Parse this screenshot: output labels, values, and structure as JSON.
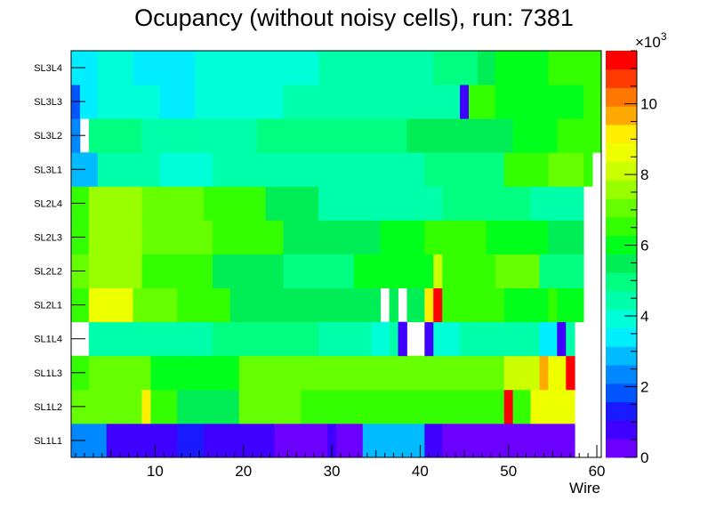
{
  "chart_data": {
    "type": "heatmap",
    "title": "Ocupancy (without noisy cells), run: 7381",
    "xlabel": "Wire",
    "ylabel": "",
    "xlim": [
      0.5,
      60.5
    ],
    "x_ticks": [
      10,
      20,
      30,
      40,
      50,
      60
    ],
    "layers": [
      "SL1L1",
      "SL1L2",
      "SL1L3",
      "SL1L4",
      "SL2L1",
      "SL2L2",
      "SL2L3",
      "SL2L4",
      "SL3L1",
      "SL3L2",
      "SL3L3",
      "SL3L4"
    ],
    "zlim": [
      0,
      11500
    ],
    "z_exponent_label": "×10",
    "z_exponent_power": "3",
    "z_ticks": [
      {
        "value": 0,
        "label": "0"
      },
      {
        "value": 2000,
        "label": "2"
      },
      {
        "value": 4000,
        "label": "4"
      },
      {
        "value": 6000,
        "label": "6"
      },
      {
        "value": 8000,
        "label": "8"
      },
      {
        "value": 10000,
        "label": "10"
      }
    ],
    "palette": [
      "#6b00ff",
      "#3f00ff",
      "#1a1aff",
      "#0055ff",
      "#0088ff",
      "#00bbff",
      "#00eeff",
      "#00ffd8",
      "#00ffaa",
      "#00ff80",
      "#00ee55",
      "#00ff1a",
      "#33ff00",
      "#66ff00",
      "#99ff00",
      "#ccff00",
      "#eeff00",
      "#ffee00",
      "#ffaa00",
      "#ff7700",
      "#ff3a00",
      "#ff0000"
    ],
    "rows": [
      {
        "layer": "SL1L1",
        "segments": [
          [
            1,
            4,
            2200
          ],
          [
            5,
            12,
            600
          ],
          [
            13,
            15,
            1100
          ],
          [
            16,
            23,
            700
          ],
          [
            24,
            29,
            400
          ],
          [
            30,
            30,
            700
          ],
          [
            31,
            33,
            400
          ],
          [
            34,
            40,
            3000
          ],
          [
            41,
            42,
            600
          ],
          [
            43,
            57,
            500
          ],
          [
            58,
            60,
            null
          ]
        ]
      },
      {
        "layer": "SL1L2",
        "segments": [
          [
            1,
            8,
            6900
          ],
          [
            9,
            9,
            9000
          ],
          [
            10,
            12,
            6300
          ],
          [
            13,
            19,
            5600
          ],
          [
            20,
            26,
            6900
          ],
          [
            27,
            49,
            6700
          ],
          [
            50,
            50,
            11200
          ],
          [
            51,
            52,
            6700
          ],
          [
            53,
            57,
            8800
          ],
          [
            58,
            60,
            null
          ]
        ]
      },
      {
        "layer": "SL1L3",
        "segments": [
          [
            1,
            2,
            6600
          ],
          [
            3,
            9,
            7100
          ],
          [
            10,
            19,
            5800
          ],
          [
            20,
            44,
            7000
          ],
          [
            45,
            49,
            7300
          ],
          [
            50,
            53,
            8200
          ],
          [
            54,
            54,
            9700
          ],
          [
            55,
            56,
            8600
          ],
          [
            57,
            57,
            11000
          ],
          [
            58,
            60,
            null
          ]
        ]
      },
      {
        "layer": "SL1L4",
        "segments": [
          [
            1,
            2,
            null
          ],
          [
            3,
            13,
            4600
          ],
          [
            14,
            16,
            4200
          ],
          [
            17,
            28,
            4800
          ],
          [
            29,
            34,
            4600
          ],
          [
            35,
            36,
            3800
          ],
          [
            37,
            37,
            4600
          ],
          [
            38,
            38,
            800
          ],
          [
            39,
            40,
            null
          ],
          [
            41,
            41,
            800
          ],
          [
            42,
            44,
            3800
          ],
          [
            45,
            53,
            4700
          ],
          [
            54,
            55,
            3500
          ],
          [
            56,
            56,
            700
          ],
          [
            57,
            57,
            4700
          ],
          [
            58,
            60,
            null
          ]
        ]
      },
      {
        "layer": "SL2L1",
        "segments": [
          [
            1,
            2,
            6300
          ],
          [
            3,
            7,
            8400
          ],
          [
            8,
            12,
            6900
          ],
          [
            13,
            18,
            6500
          ],
          [
            19,
            33,
            5700
          ],
          [
            34,
            35,
            5300
          ],
          [
            36,
            36,
            null
          ],
          [
            37,
            37,
            5300
          ],
          [
            38,
            38,
            null
          ],
          [
            39,
            40,
            5300
          ],
          [
            41,
            41,
            9300
          ],
          [
            42,
            42,
            11200
          ],
          [
            43,
            49,
            6300
          ],
          [
            50,
            54,
            5900
          ],
          [
            55,
            55,
            6400
          ],
          [
            56,
            58,
            5900
          ],
          [
            59,
            60,
            null
          ]
        ]
      },
      {
        "layer": "SL2L2",
        "segments": [
          [
            1,
            2,
            7000
          ],
          [
            3,
            8,
            7400
          ],
          [
            9,
            16,
            6600
          ],
          [
            17,
            24,
            5600
          ],
          [
            25,
            32,
            5200
          ],
          [
            33,
            41,
            6100
          ],
          [
            42,
            42,
            8000
          ],
          [
            43,
            48,
            6500
          ],
          [
            49,
            53,
            6900
          ],
          [
            54,
            58,
            4900
          ],
          [
            59,
            60,
            null
          ]
        ]
      },
      {
        "layer": "SL2L3",
        "segments": [
          [
            1,
            2,
            6600
          ],
          [
            3,
            8,
            7700
          ],
          [
            9,
            16,
            7100
          ],
          [
            17,
            24,
            6300
          ],
          [
            25,
            35,
            5700
          ],
          [
            36,
            40,
            6000
          ],
          [
            41,
            47,
            6700
          ],
          [
            48,
            54,
            6100
          ],
          [
            55,
            58,
            5600
          ],
          [
            59,
            60,
            null
          ]
        ]
      },
      {
        "layer": "SL2L4",
        "segments": [
          [
            1,
            2,
            6700
          ],
          [
            3,
            8,
            7700
          ],
          [
            9,
            15,
            7000
          ],
          [
            16,
            22,
            6400
          ],
          [
            23,
            28,
            5700
          ],
          [
            29,
            42,
            4500
          ],
          [
            43,
            52,
            5200
          ],
          [
            53,
            58,
            4500
          ],
          [
            59,
            60,
            null
          ]
        ]
      },
      {
        "layer": "SL3L1",
        "segments": [
          [
            1,
            3,
            3100
          ],
          [
            4,
            10,
            4600
          ],
          [
            11,
            16,
            4100
          ],
          [
            17,
            33,
            4400
          ],
          [
            34,
            40,
            4300
          ],
          [
            41,
            45,
            5200
          ],
          [
            46,
            49,
            4800
          ],
          [
            50,
            54,
            6500
          ],
          [
            55,
            58,
            6900
          ],
          [
            59,
            59,
            6300
          ],
          [
            60,
            60,
            null
          ]
        ]
      },
      {
        "layer": "SL3L2",
        "segments": [
          [
            1,
            1,
            2400
          ],
          [
            2,
            2,
            null
          ],
          [
            3,
            8,
            4900
          ],
          [
            9,
            13,
            4400
          ],
          [
            14,
            21,
            4700
          ],
          [
            22,
            38,
            4900
          ],
          [
            39,
            50,
            5500
          ],
          [
            51,
            55,
            5900
          ],
          [
            56,
            60,
            6400
          ]
        ]
      },
      {
        "layer": "SL3L3",
        "segments": [
          [
            1,
            1,
            1700
          ],
          [
            2,
            3,
            3500
          ],
          [
            4,
            10,
            4100
          ],
          [
            11,
            14,
            3200
          ],
          [
            15,
            24,
            3900
          ],
          [
            25,
            34,
            4500
          ],
          [
            35,
            36,
            4200
          ],
          [
            37,
            44,
            4700
          ],
          [
            45,
            45,
            900
          ],
          [
            46,
            48,
            6400
          ],
          [
            49,
            58,
            6100
          ],
          [
            59,
            60,
            6700
          ]
        ]
      },
      {
        "layer": "SL3L4",
        "segments": [
          [
            1,
            3,
            3300
          ],
          [
            4,
            7,
            3900
          ],
          [
            8,
            14,
            3300
          ],
          [
            15,
            28,
            4000
          ],
          [
            29,
            41,
            4300
          ],
          [
            42,
            46,
            5000
          ],
          [
            47,
            48,
            5400
          ],
          [
            49,
            54,
            5800
          ],
          [
            55,
            59,
            6700
          ],
          [
            60,
            60,
            6400
          ]
        ]
      }
    ]
  }
}
